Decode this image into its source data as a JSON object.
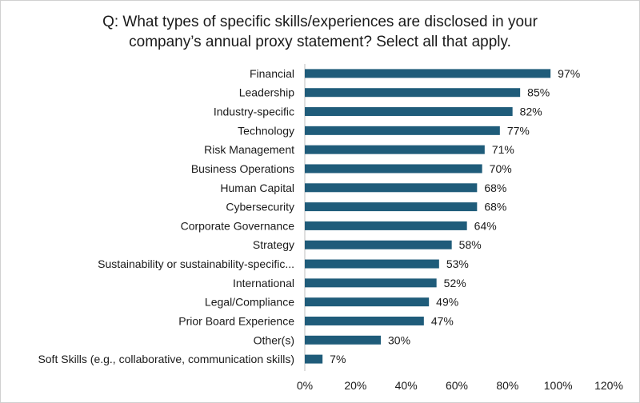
{
  "chart_data": {
    "type": "bar",
    "orientation": "horizontal",
    "title_lines": [
      "Q: What types of specific skills/experiences are disclosed in your",
      "company’s annual proxy statement? Select all that apply."
    ],
    "categories": [
      "Financial",
      "Leadership",
      "Industry-specific",
      "Technology",
      "Risk Management",
      "Business Operations",
      "Human Capital",
      "Cybersecurity",
      "Corporate Governance",
      "Strategy",
      "Sustainability or sustainability-specific...",
      "International",
      "Legal/Compliance",
      "Prior Board Experience",
      "Other(s)",
      "Soft Skills (e.g., collaborative, communication skills)"
    ],
    "values": [
      97,
      85,
      82,
      77,
      71,
      70,
      68,
      68,
      64,
      58,
      53,
      52,
      49,
      47,
      30,
      7
    ],
    "data_labels": [
      "97%",
      "85%",
      "82%",
      "77%",
      "71%",
      "70%",
      "68%",
      "68%",
      "64%",
      "58%",
      "53%",
      "52%",
      "49%",
      "47%",
      "30%",
      "7%"
    ],
    "xlim": [
      0,
      120
    ],
    "x_ticks": [
      0,
      20,
      40,
      60,
      80,
      100,
      120
    ],
    "x_tick_labels": [
      "0%",
      "20%",
      "40%",
      "60%",
      "80%",
      "100%",
      "120%"
    ],
    "grid": false,
    "legend": "none",
    "bar_color": "#1f5c7a"
  }
}
